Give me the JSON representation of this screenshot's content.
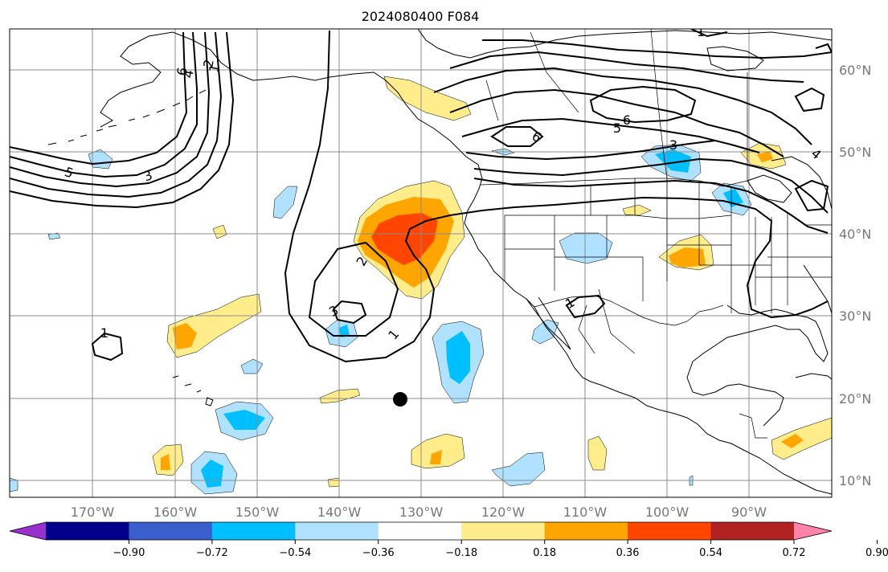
{
  "title": "2024080400 F084",
  "lon_ticks": [
    "170°W",
    "160°W",
    "150°W",
    "140°W",
    "130°W",
    "120°W",
    "110°W",
    "100°W",
    "90°W"
  ],
  "lat_ticks": [
    "60°N",
    "50°N",
    "40°N",
    "30°N",
    "20°N",
    "10°N"
  ],
  "contour_labels": [
    "1",
    "2",
    "3",
    "4",
    "5",
    "6",
    "2",
    "3",
    "1",
    "3",
    "5",
    "6",
    "6",
    "3",
    "1",
    "4",
    "1",
    "1"
  ],
  "colorbar": {
    "ticks": [
      "−0.90",
      "−0.72",
      "−0.54",
      "−0.36",
      "−0.18",
      "0.18",
      "0.36",
      "0.54",
      "0.72",
      "0.90"
    ],
    "colors": [
      "#9932cc",
      "#00008b",
      "#3a5fcd",
      "#00bfff",
      "#b0e2ff",
      "#ffffff",
      "#ffec8b",
      "#ffa500",
      "#ff4500",
      "#b22222",
      "#ff82ab"
    ]
  },
  "colors": {
    "pos1": "#ffec8b",
    "pos2": "#ffa500",
    "pos3": "#ff4500",
    "neg1": "#b0e2ff",
    "neg2": "#00bfff"
  }
}
